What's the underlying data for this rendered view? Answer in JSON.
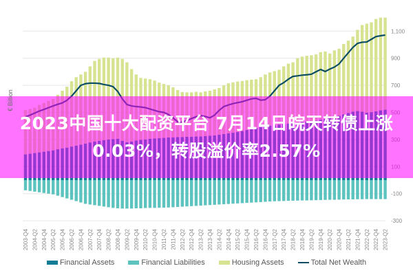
{
  "banner": {
    "text": "2023中国十大配资平台 7月14日皖天转债上涨0.03%，转股溢价率2.57%"
  },
  "chart_data": {
    "type": "bar",
    "stacked": true,
    "ylabel": "€ Billion",
    "ylim": [
      -300,
      1200
    ],
    "yticks": [
      -300,
      -100,
      100,
      300,
      500,
      700,
      900,
      1100
    ],
    "ytick_labels": [
      "-300",
      "-100",
      "100",
      "300",
      "500",
      "700",
      "900",
      "1,100"
    ],
    "grid": true,
    "legend_position": "bottom",
    "x_tick_labels": [
      "2003-Q4",
      "2004-Q2",
      "2004-Q4",
      "2005-Q2",
      "2005-Q4",
      "2006-Q2",
      "2006-Q4",
      "2007-Q2",
      "2007-Q4",
      "2008-Q2",
      "2008-Q4",
      "2009-Q2",
      "2009-Q4",
      "2010-Q2",
      "2010-Q4",
      "2011-Q2",
      "2011-Q4",
      "2012-Q2",
      "2012-Q4",
      "2013-Q2",
      "2013-Q4",
      "2014-Q2",
      "2014-Q4",
      "2015-Q2",
      "2015-Q4",
      "2016-Q2",
      "2016-Q4",
      "2017-Q2",
      "2017-Q4",
      "2018-Q2",
      "2018-Q4",
      "2019-Q2",
      "2019-Q4",
      "2020-Q2",
      "2020-Q4",
      "2021-Q2",
      "2021-Q4",
      "2022-Q2",
      "2022-Q4",
      "2023-Q2"
    ],
    "series": [
      {
        "name": "Financial Assets",
        "kind": "bar",
        "color": "#137c95",
        "values": [
          190,
          195,
          200,
          205,
          210,
          215,
          220,
          228,
          235,
          240,
          248,
          255,
          262,
          270,
          278,
          285,
          290,
          295,
          300,
          303,
          305,
          290,
          280,
          285,
          292,
          298,
          300,
          305,
          308,
          310,
          312,
          315,
          316,
          318,
          318,
          320,
          320,
          322,
          322,
          325,
          328,
          330,
          335,
          340,
          345,
          350,
          355,
          362,
          370,
          378,
          385,
          392,
          398,
          402,
          405,
          410,
          414,
          418,
          420,
          425,
          430,
          432,
          436,
          440,
          446,
          452,
          460,
          468,
          476,
          486,
          496,
          505,
          510,
          505,
          498,
          502,
          508,
          515,
          520
        ]
      },
      {
        "name": "Financial Liabilities",
        "kind": "bar",
        "color": "#5cc3bf",
        "values": [
          -75,
          -80,
          -85,
          -90,
          -95,
          -100,
          -105,
          -115,
          -125,
          -135,
          -145,
          -155,
          -165,
          -175,
          -180,
          -185,
          -190,
          -195,
          -200,
          -205,
          -208,
          -210,
          -210,
          -210,
          -208,
          -208,
          -206,
          -205,
          -205,
          -204,
          -203,
          -202,
          -200,
          -198,
          -196,
          -194,
          -192,
          -190,
          -188,
          -186,
          -184,
          -182,
          -180,
          -178,
          -176,
          -174,
          -172,
          -170,
          -168,
          -166,
          -164,
          -162,
          -160,
          -158,
          -156,
          -155,
          -154,
          -153,
          -152,
          -151,
          -150,
          -150,
          -149,
          -148,
          -147,
          -146,
          -145,
          -145,
          -144,
          -143,
          -142,
          -142,
          -141,
          -141,
          -140,
          -140,
          -140,
          -140,
          -140
        ]
      },
      {
        "name": "Housing Assets",
        "kind": "bar",
        "color": "#d7e391",
        "values": [
          328,
          330,
          335,
          350,
          360,
          370,
          380,
          402,
          425,
          450,
          482,
          505,
          518,
          530,
          562,
          595,
          605,
          610,
          605,
          597,
          600,
          605,
          590,
          535,
          488,
          457,
          450,
          440,
          427,
          410,
          398,
          385,
          369,
          347,
          332,
          328,
          328,
          330,
          326,
          330,
          332,
          340,
          345,
          360,
          370,
          372,
          373,
          370,
          368,
          364,
          360,
          368,
          382,
          393,
          400,
          405,
          426,
          442,
          450,
          475,
          482,
          486,
          486,
          488,
          499,
          498,
          475,
          490,
          494,
          519,
          534,
          555,
          600,
          640,
          657,
          663,
          682,
          685,
          680
        ]
      },
      {
        "name": "Total Net Wealth",
        "kind": "line",
        "color": "#0b4d63",
        "values": [
          467,
          480,
          495,
          510,
          522,
          535,
          548,
          560,
          570,
          590,
          620,
          660,
          700,
          712,
          716,
          716,
          714,
          706,
          700,
          690,
          655,
          600,
          558,
          548,
          543,
          540,
          535,
          525,
          515,
          505,
          500,
          485,
          460,
          430,
          428,
          440,
          455,
          468,
          477,
          470,
          460,
          480,
          515,
          543,
          555,
          565,
          572,
          579,
          590,
          600,
          604,
          590,
          594,
          620,
          660,
          700,
          720,
          745,
          766,
          770,
          775,
          778,
          782,
          800,
          817,
          802,
          820,
          835,
          858,
          900,
          940,
          980,
          1010,
          1018,
          1020,
          1040,
          1060,
          1066,
          1071
        ]
      }
    ]
  }
}
